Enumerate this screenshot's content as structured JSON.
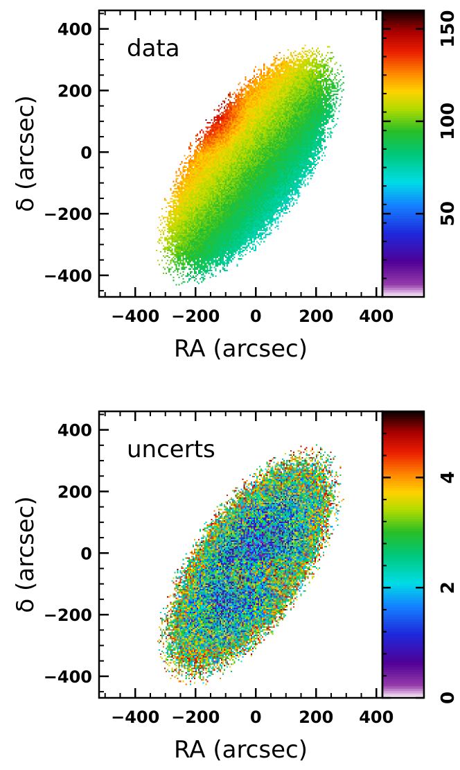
{
  "chart_data": [
    {
      "type": "heatmap",
      "panel_label": "data",
      "xlabel": "RA (arcsec)",
      "ylabel": "δ (arcsec)",
      "xlim": [
        -520,
        420
      ],
      "ylim": [
        -470,
        460
      ],
      "xticks": [
        -400,
        -200,
        0,
        200,
        400
      ],
      "yticks": [
        -400,
        -200,
        0,
        200,
        400
      ],
      "xtick_labels": [
        "−400",
        "−200",
        "0",
        "200",
        "400"
      ],
      "ytick_labels": [
        "−400",
        "−200",
        "0",
        "200",
        "400"
      ],
      "colorbar": {
        "range": [
          5,
          160
        ],
        "ticks": [
          50,
          100,
          150
        ],
        "tick_labels": [
          "50",
          "100",
          "150"
        ]
      },
      "field": {
        "center": [
          -20,
          -40
        ],
        "position_angle_deg": 35,
        "semi_major": 430,
        "semi_minor": 190,
        "gradient_axis_deg": 40,
        "value_min": 50,
        "value_max": 150,
        "peak_center": [
          -160,
          130
        ],
        "peak_value": 152,
        "noise": 10
      },
      "grid": false
    },
    {
      "type": "heatmap",
      "panel_label": "uncerts",
      "xlabel": "RA (arcsec)",
      "ylabel": "δ (arcsec)",
      "xlim": [
        -520,
        420
      ],
      "ylim": [
        -470,
        460
      ],
      "xticks": [
        -400,
        -200,
        0,
        200,
        400
      ],
      "yticks": [
        -400,
        -200,
        0,
        200,
        400
      ],
      "xtick_labels": [
        "−400",
        "−200",
        "0",
        "200",
        "400"
      ],
      "ytick_labels": [
        "−400",
        "−200",
        "0",
        "200",
        "400"
      ],
      "colorbar": {
        "range": [
          0,
          5.2
        ],
        "ticks": [
          0,
          2,
          4
        ],
        "tick_labels": [
          "0",
          "2",
          "4"
        ]
      },
      "field": {
        "center": [
          -20,
          -40
        ],
        "position_angle_deg": 35,
        "semi_major": 430,
        "semi_minor": 190,
        "core_value": 0.9,
        "edge_value": 3.5,
        "noise": 1.6,
        "hot_spots": [
          [
            -40,
            -80,
            4.5
          ],
          [
            -220,
            120,
            3.8
          ],
          [
            60,
            -60,
            4.2
          ]
        ]
      },
      "grid": false
    }
  ]
}
